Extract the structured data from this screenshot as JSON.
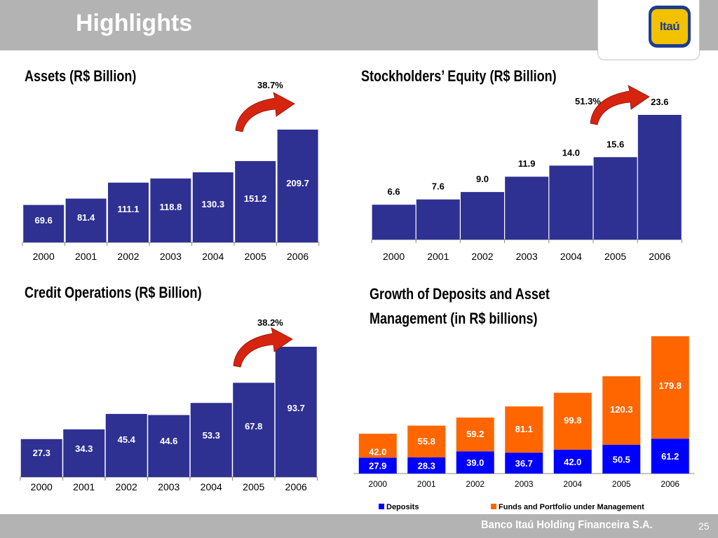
{
  "header": {
    "title": "Highlights"
  },
  "logo": {
    "text": "Itaú"
  },
  "footer": {
    "company": "Banco Itaú Holding Financeira S.A.",
    "page": "25"
  },
  "colors": {
    "bar": "#2e3192",
    "deposits": "#0000ff",
    "funds": "#ff6600",
    "arrow": "#d62410"
  },
  "icons": [
    "growth-arrow-icon"
  ],
  "growth_labels": {
    "assets": "38.7%",
    "equity": "51.3%",
    "credit": "38.2%"
  },
  "chart_data": [
    {
      "type": "bar",
      "title": "Assets (R$ Billion)",
      "categories": [
        "2000",
        "2001",
        "2002",
        "2003",
        "2004",
        "2005",
        "2006"
      ],
      "values": [
        69.6,
        81.4,
        111.1,
        118.8,
        130.3,
        151.2,
        209.7
      ],
      "labels": [
        "69.6",
        "81.4",
        "111.1",
        "118.8",
        "130.3",
        "151.2",
        "209.7"
      ],
      "label_position": "inside",
      "xlabel": "",
      "ylabel": "",
      "ylim": [
        0,
        209.7
      ],
      "grid": false,
      "annotation": "38.7%"
    },
    {
      "type": "bar",
      "title": "Stockholders’ Equity (R$ Billion)",
      "categories": [
        "2000",
        "2001",
        "2002",
        "2003",
        "2004",
        "2005",
        "2006"
      ],
      "values": [
        6.6,
        7.6,
        9.0,
        11.9,
        14.0,
        15.6,
        23.6
      ],
      "labels": [
        "6.6",
        "7.6",
        "9.0",
        "11.9",
        "14.0",
        "15.6",
        "23.6"
      ],
      "label_position": "above",
      "xlabel": "",
      "ylabel": "",
      "ylim": [
        0,
        23.6
      ],
      "grid": false,
      "annotation": "51.3%"
    },
    {
      "type": "bar",
      "title": "Credit Operations (R$ Billion)",
      "categories": [
        "2000",
        "2001",
        "2002",
        "2003",
        "2004",
        "2005",
        "2006"
      ],
      "values": [
        27.3,
        34.3,
        45.4,
        44.6,
        53.3,
        67.8,
        93.7
      ],
      "labels": [
        "27.3",
        "34.3",
        "45.4",
        "44.6",
        "53.3",
        "67.8",
        "93.7"
      ],
      "label_position": "inside",
      "xlabel": "",
      "ylabel": "",
      "ylim": [
        0,
        93.7
      ],
      "grid": false,
      "annotation": "38.2%"
    },
    {
      "type": "bar",
      "stacked": true,
      "title": "Growth of Deposits and Asset Management (in R$ billions)",
      "title_lines": [
        "Growth of Deposits and Asset",
        "Management (in R$ billions)"
      ],
      "categories": [
        "2000",
        "2001",
        "2002",
        "2003",
        "2004",
        "2005",
        "2006"
      ],
      "series": [
        {
          "name": "Deposits",
          "values": [
            27.9,
            28.3,
            39.0,
            36.7,
            42.0,
            50.5,
            61.2
          ],
          "labels": [
            "27.9",
            "28.3",
            "39.0",
            "36.7",
            "42.0",
            "50.5",
            "61.2"
          ]
        },
        {
          "name": "Funds and Portfolio under Management",
          "values": [
            42.0,
            55.8,
            59.2,
            81.1,
            99.8,
            120.3,
            179.8
          ],
          "labels": [
            "42.0",
            "55.8",
            "59.2",
            "81.1",
            "99.8",
            "120.3",
            "179.8"
          ]
        }
      ],
      "xlabel": "",
      "ylabel": "",
      "ylim": [
        0,
        241
      ],
      "grid": false,
      "legend": "bottom"
    }
  ]
}
